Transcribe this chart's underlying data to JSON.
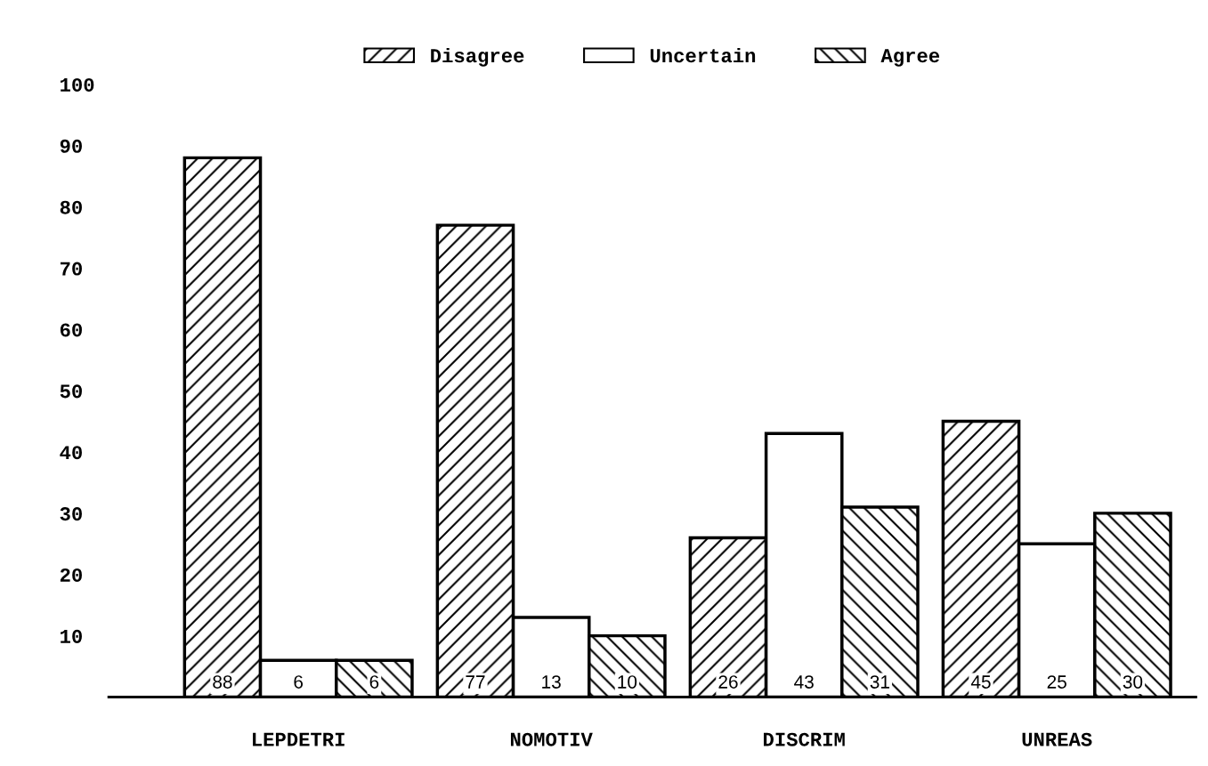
{
  "chart_data": {
    "type": "bar",
    "categories": [
      "LEPDETRI",
      "NOMOTIV",
      "DISCRIM",
      "UNREAS"
    ],
    "series": [
      {
        "name": "Disagree",
        "color": "#000000",
        "values": [
          88,
          77,
          26,
          45
        ]
      },
      {
        "name": "Uncertain",
        "color": "#ffffff",
        "values": [
          6,
          13,
          43,
          25
        ]
      },
      {
        "name": "Agree",
        "color": "#000000",
        "values": [
          6,
          10,
          31,
          30
        ]
      }
    ],
    "ylim": [
      0,
      100
    ],
    "yticks": [
      10,
      20,
      30,
      40,
      50,
      60,
      70,
      80,
      90,
      100
    ],
    "data_labels": true,
    "grid": false,
    "legend": "top"
  }
}
